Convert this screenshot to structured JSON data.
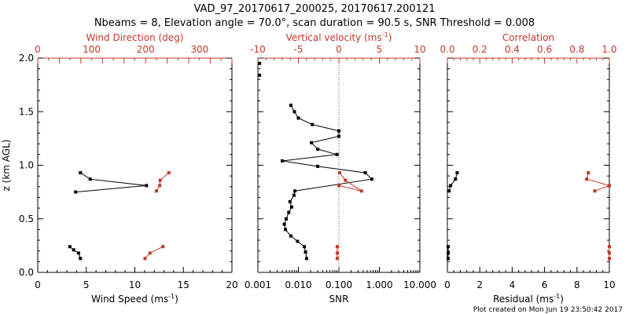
{
  "title_line1": "VAD_97_20170617_200025, 20170617.200121",
  "title_line2": "Nbeams = 8, Elevation angle = 70.0°, scan duration = 90.5 s, SNR Threshold = 0.008",
  "footer": "Plot created on Mon Jun 19 23:50:42 2017",
  "colors": {
    "black": "#000000",
    "red": "#c0392b"
  },
  "chart_data": [
    {
      "type": "line",
      "ylabel": "z (km AGL)",
      "ylim": [
        0,
        2.0
      ],
      "yticks": [
        "0.0",
        "0.5",
        "1.0",
        "1.5",
        "2.0"
      ],
      "bottom_axis": {
        "label": "Wind Speed (ms",
        "unit_sup": "-1",
        "unit_close": ")",
        "range": [
          0,
          20
        ],
        "ticks": [
          "0",
          "5",
          "10",
          "15",
          "20"
        ]
      },
      "top_axis": {
        "label": "Wind Direction (deg)",
        "range": [
          0,
          360
        ],
        "ticks": [
          "0",
          "100",
          "200",
          "300"
        ]
      },
      "series": [
        {
          "axis": "bottom",
          "color": "#000000",
          "segments": [
            [
              [
                3.3,
                0.24
              ],
              [
                3.7,
                0.21
              ],
              [
                4.2,
                0.18
              ],
              [
                4.4,
                0.13
              ]
            ],
            [
              [
                3.9,
                0.75
              ],
              [
                11.2,
                0.81
              ],
              [
                5.4,
                0.87
              ],
              [
                4.4,
                0.93
              ]
            ]
          ]
        },
        {
          "axis": "top",
          "color": "#c0392b",
          "segments": [
            [
              [
                232,
                0.24
              ],
              [
                208,
                0.18
              ],
              [
                199,
                0.13
              ]
            ],
            [
              [
                243,
                0.93
              ],
              [
                227,
                0.86
              ],
              [
                226,
                0.81
              ],
              [
                220,
                0.76
              ]
            ]
          ]
        }
      ]
    },
    {
      "type": "line",
      "ylim": [
        0,
        2.0
      ],
      "bottom_axis": {
        "label": "SNR",
        "scale": "log",
        "range": [
          0.001,
          10
        ],
        "ticks": [
          "0.001",
          "0.010",
          "0.100",
          "1.000",
          "10.000"
        ]
      },
      "top_axis": {
        "label": "Vertical velocity (ms",
        "unit_sup": "-1",
        "unit_close": ")",
        "range": [
          -10,
          10
        ],
        "ticks": [
          "-10",
          "-5",
          "0",
          "5",
          "10"
        ]
      },
      "reference_line": {
        "axis": "top",
        "value": 0,
        "style": "dotted",
        "color": "#c0392b"
      },
      "series": [
        {
          "axis": "bottom",
          "color": "#000000",
          "segments": [
            [
              [
                0.0011,
                1.95
              ]
            ],
            [
              [
                0.0011,
                1.84
              ]
            ],
            [
              [
                0.016,
                0.13
              ],
              [
                0.015,
                0.19
              ],
              [
                0.014,
                0.24
              ],
              [
                0.0095,
                0.29
              ],
              [
                0.0065,
                0.34
              ],
              [
                0.0048,
                0.4
              ],
              [
                0.0045,
                0.45
              ],
              [
                0.005,
                0.5
              ],
              [
                0.0058,
                0.56
              ],
              [
                0.0068,
                0.61
              ],
              [
                0.0062,
                0.66
              ],
              [
                0.0078,
                0.72
              ],
              [
                0.0082,
                0.76
              ],
              [
                0.65,
                0.87
              ],
              [
                0.45,
                0.93
              ],
              [
                0.03,
                0.99
              ],
              [
                0.004,
                1.04
              ],
              [
                0.09,
                1.1
              ],
              [
                0.03,
                1.15
              ],
              [
                0.021,
                1.21
              ],
              [
                0.1,
                1.27
              ],
              [
                0.1,
                1.32
              ],
              [
                0.022,
                1.38
              ],
              [
                0.01,
                1.44
              ],
              [
                0.008,
                1.5
              ],
              [
                0.0065,
                1.56
              ]
            ]
          ]
        },
        {
          "axis": "top",
          "color": "#c0392b",
          "segments": [
            [
              [
                -0.2,
                0.13
              ],
              [
                -0.2,
                0.18
              ],
              [
                -0.2,
                0.24
              ]
            ],
            [
              [
                0.0,
                0.81
              ],
              [
                2.8,
                0.76
              ],
              [
                0.8,
                0.86
              ],
              [
                0.1,
                0.93
              ]
            ]
          ]
        }
      ]
    },
    {
      "type": "line",
      "ylim": [
        0,
        2.0
      ],
      "bottom_axis": {
        "label": "Residual (ms",
        "unit_sup": "-1",
        "unit_close": ")",
        "range": [
          0,
          10
        ],
        "ticks": [
          "0",
          "2",
          "4",
          "6",
          "8",
          "10"
        ]
      },
      "top_axis": {
        "label": "Correlation",
        "range": [
          0.0,
          1.0
        ],
        "ticks": [
          "0.0",
          "0.2",
          "0.4",
          "0.6",
          "0.8",
          "1.0"
        ]
      },
      "series": [
        {
          "axis": "bottom",
          "color": "#000000",
          "segments": [
            [
              [
                0.05,
                0.13
              ],
              [
                0.05,
                0.18
              ],
              [
                0.05,
                0.24
              ]
            ],
            [
              [
                0.1,
                0.76
              ],
              [
                0.2,
                0.81
              ],
              [
                0.5,
                0.87
              ],
              [
                0.6,
                0.93
              ]
            ]
          ]
        },
        {
          "axis": "top",
          "color": "#c0392b",
          "segments": [
            [
              [
                1.0,
                0.13
              ],
              [
                1.0,
                0.18
              ],
              [
                1.0,
                0.24
              ]
            ],
            [
              [
                0.91,
                0.76
              ],
              [
                1.0,
                0.81
              ],
              [
                0.86,
                0.87
              ],
              [
                0.87,
                0.93
              ]
            ]
          ]
        }
      ]
    }
  ]
}
